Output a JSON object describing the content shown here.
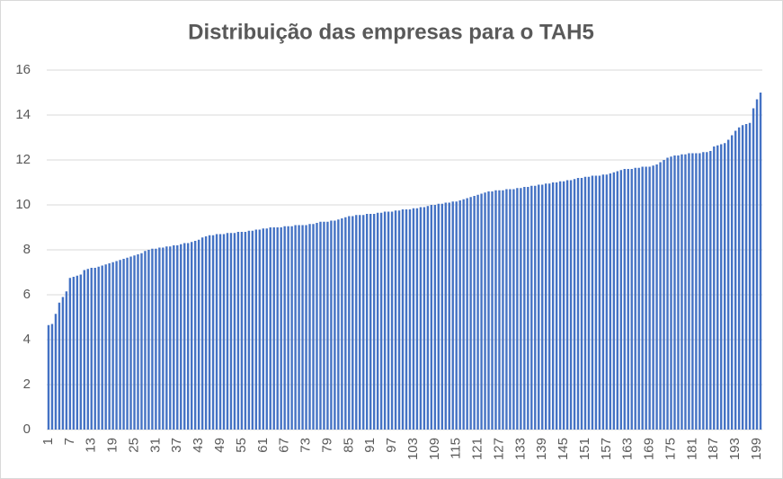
{
  "chart_data": {
    "type": "bar",
    "title": "Distribuição das empresas para o TAH5",
    "categories": [
      "1",
      null,
      null,
      null,
      null,
      null,
      "7",
      null,
      null,
      null,
      null,
      null,
      "13",
      null,
      null,
      null,
      null,
      null,
      "19",
      null,
      null,
      null,
      null,
      null,
      "25",
      null,
      null,
      null,
      null,
      null,
      "31",
      null,
      null,
      null,
      null,
      null,
      "37",
      null,
      null,
      null,
      null,
      null,
      "43",
      null,
      null,
      null,
      null,
      null,
      "49",
      null,
      null,
      null,
      null,
      null,
      "55",
      null,
      null,
      null,
      null,
      null,
      "61",
      null,
      null,
      null,
      null,
      null,
      "67",
      null,
      null,
      null,
      null,
      null,
      "73",
      null,
      null,
      null,
      null,
      null,
      "79",
      null,
      null,
      null,
      null,
      null,
      "85",
      null,
      null,
      null,
      null,
      null,
      "91",
      null,
      null,
      null,
      null,
      null,
      "97",
      null,
      null,
      null,
      null,
      null,
      "103",
      null,
      null,
      null,
      null,
      null,
      "109",
      null,
      null,
      null,
      null,
      null,
      "115",
      null,
      null,
      null,
      null,
      null,
      "121",
      null,
      null,
      null,
      null,
      null,
      "127",
      null,
      null,
      null,
      null,
      null,
      "133",
      null,
      null,
      null,
      null,
      null,
      "139",
      null,
      null,
      null,
      null,
      null,
      "145",
      null,
      null,
      null,
      null,
      null,
      "151",
      null,
      null,
      null,
      null,
      null,
      "157",
      null,
      null,
      null,
      null,
      null,
      "163",
      null,
      null,
      null,
      null,
      null,
      "169",
      null,
      null,
      null,
      null,
      null,
      "175",
      null,
      null,
      null,
      null,
      null,
      "181",
      null,
      null,
      null,
      null,
      null,
      "187",
      null,
      null,
      null,
      null,
      null,
      "193",
      null,
      null,
      null,
      null,
      null,
      "199",
      null
    ],
    "values": [
      4.65,
      4.7,
      5.15,
      5.65,
      5.9,
      6.15,
      6.75,
      6.8,
      6.85,
      6.9,
      7.1,
      7.15,
      7.2,
      7.2,
      7.25,
      7.3,
      7.35,
      7.4,
      7.45,
      7.5,
      7.55,
      7.6,
      7.65,
      7.7,
      7.75,
      7.8,
      7.85,
      7.95,
      8.0,
      8.05,
      8.05,
      8.1,
      8.1,
      8.15,
      8.15,
      8.2,
      8.2,
      8.25,
      8.3,
      8.3,
      8.35,
      8.4,
      8.45,
      8.55,
      8.6,
      8.65,
      8.65,
      8.7,
      8.7,
      8.7,
      8.75,
      8.75,
      8.75,
      8.8,
      8.8,
      8.8,
      8.85,
      8.85,
      8.9,
      8.9,
      8.95,
      8.95,
      9.0,
      9.0,
      9.0,
      9.0,
      9.05,
      9.05,
      9.05,
      9.1,
      9.1,
      9.1,
      9.1,
      9.15,
      9.15,
      9.2,
      9.25,
      9.25,
      9.25,
      9.3,
      9.3,
      9.35,
      9.4,
      9.45,
      9.5,
      9.5,
      9.55,
      9.55,
      9.55,
      9.6,
      9.6,
      9.6,
      9.65,
      9.65,
      9.7,
      9.7,
      9.7,
      9.75,
      9.75,
      9.8,
      9.8,
      9.8,
      9.85,
      9.85,
      9.9,
      9.9,
      9.95,
      10.0,
      10.0,
      10.05,
      10.05,
      10.1,
      10.1,
      10.15,
      10.15,
      10.2,
      10.25,
      10.3,
      10.35,
      10.4,
      10.45,
      10.5,
      10.55,
      10.6,
      10.6,
      10.65,
      10.65,
      10.65,
      10.7,
      10.7,
      10.7,
      10.75,
      10.75,
      10.8,
      10.8,
      10.85,
      10.85,
      10.9,
      10.9,
      10.95,
      10.95,
      11.0,
      11.0,
      11.05,
      11.05,
      11.1,
      11.1,
      11.15,
      11.2,
      11.2,
      11.25,
      11.25,
      11.3,
      11.3,
      11.3,
      11.35,
      11.35,
      11.4,
      11.45,
      11.5,
      11.55,
      11.6,
      11.6,
      11.6,
      11.65,
      11.65,
      11.7,
      11.7,
      11.7,
      11.75,
      11.8,
      11.9,
      12.0,
      12.1,
      12.15,
      12.2,
      12.2,
      12.25,
      12.25,
      12.3,
      12.3,
      12.3,
      12.3,
      12.35,
      12.35,
      12.4,
      12.6,
      12.65,
      12.7,
      12.75,
      12.9,
      13.1,
      13.3,
      13.45,
      13.55,
      13.6,
      13.65,
      14.3,
      14.7,
      15.0
    ],
    "color": "#4472c4",
    "ylim": [
      0,
      16
    ],
    "yticks": [
      0,
      2,
      4,
      6,
      8,
      10,
      12,
      14,
      16
    ],
    "grid": true
  }
}
